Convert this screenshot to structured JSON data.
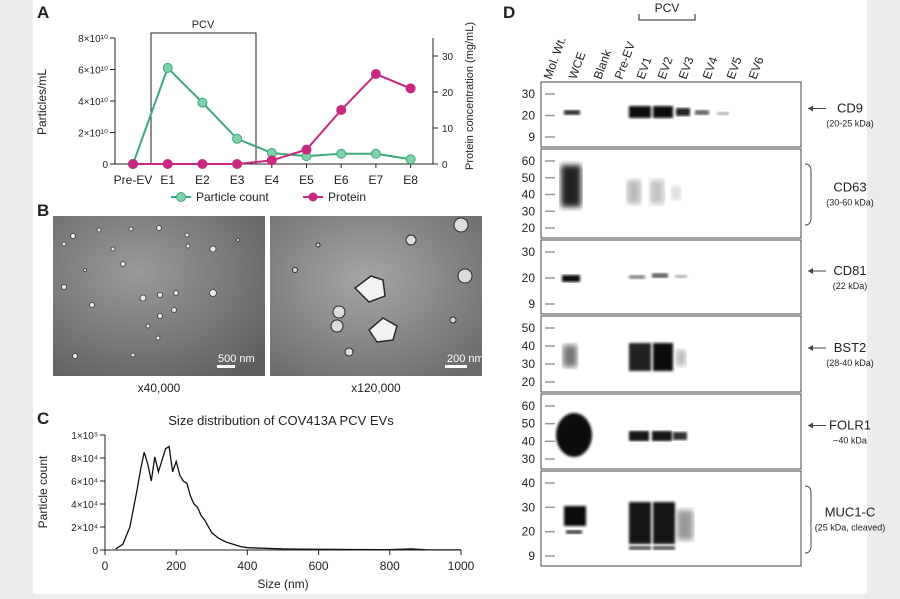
{
  "panels": {
    "a": {
      "label": "A",
      "bracket": "PCV",
      "chart_data": {
        "type": "line",
        "categories": [
          "Pre-EV",
          "E1",
          "E2",
          "E3",
          "E4",
          "E5",
          "E6",
          "E7",
          "E8"
        ],
        "ylabel": "Particles/mL",
        "y2label": "Protein concentration (mg/mL)",
        "yticks": [
          "0",
          "2×10¹⁰",
          "4×10¹⁰",
          "6×10¹⁰",
          "8×10¹⁰"
        ],
        "ylim": [
          0,
          80000000000.0
        ],
        "y2ticks": [
          "0",
          "10",
          "20",
          "30"
        ],
        "y2lim": [
          0,
          35
        ],
        "series": [
          {
            "name": "Particle count",
            "axis": "left",
            "color": "#3fa87a",
            "values": [
              0,
              61000000000.0,
              39000000000.0,
              16000000000.0,
              7000000000.0,
              5000000000.0,
              6500000000.0,
              6500000000.0,
              3000000000.0
            ]
          },
          {
            "name": "Protein",
            "axis": "right",
            "color": "#c8287f",
            "values": [
              0,
              0,
              0,
              0,
              1,
              4,
              15,
              25,
              21
            ]
          }
        ]
      }
    },
    "b": {
      "label": "B",
      "images": [
        {
          "scale": "500 nm",
          "mag": "x40,000"
        },
        {
          "scale": "200 nm",
          "mag": "x120,000"
        }
      ]
    },
    "c": {
      "label": "C",
      "chart_data": {
        "type": "line",
        "title": "Size distribution of COV413A PCV EVs",
        "xlabel": "Size (nm)",
        "ylabel": "Particle count",
        "xticks": [
          "0",
          "200",
          "400",
          "600",
          "800",
          "1000"
        ],
        "xlim": [
          0,
          1000
        ],
        "yticks": [
          "0",
          "2×10⁴",
          "4×10⁴",
          "6×10⁴",
          "8×10⁴",
          "1×10⁵"
        ],
        "ylim": [
          0,
          100000
        ],
        "x": [
          30,
          50,
          70,
          90,
          100,
          110,
          120,
          130,
          140,
          150,
          160,
          170,
          180,
          190,
          200,
          210,
          220,
          230,
          240,
          250,
          260,
          270,
          280,
          300,
          320,
          340,
          360,
          380,
          400,
          450,
          500,
          550,
          600,
          650,
          700,
          800,
          860,
          900,
          1000
        ],
        "y": [
          1000,
          5000,
          20000,
          52000,
          70000,
          85000,
          75000,
          60000,
          81000,
          68000,
          78000,
          88000,
          90000,
          68000,
          77000,
          65000,
          60000,
          58000,
          47000,
          40000,
          37000,
          30000,
          26000,
          15000,
          10000,
          7000,
          5000,
          3000,
          2000,
          1500,
          1000,
          800,
          600,
          500,
          400,
          300,
          1000,
          200,
          100
        ]
      }
    },
    "d": {
      "label": "D",
      "bracket": "PCV",
      "lanes": [
        "Mol. Wt.",
        "WCE",
        "Blank",
        "Pre-EV",
        "EV1",
        "EV2",
        "EV3",
        "EV4",
        "EV5",
        "EV6"
      ],
      "blots": [
        {
          "protein": "CD9",
          "size": "(20-25 kDa)",
          "markers": [
            "30",
            "20",
            "9"
          ]
        },
        {
          "protein": "CD63",
          "size": "(30-60 kDa)",
          "markers": [
            "60",
            "50",
            "40",
            "30",
            "20"
          ]
        },
        {
          "protein": "CD81",
          "size": "(22 kDa)",
          "markers": [
            "30",
            "20",
            "9"
          ]
        },
        {
          "protein": "BST2",
          "size": "(28-40 kDa)",
          "markers": [
            "50",
            "40",
            "30",
            "20"
          ]
        },
        {
          "protein": "FOLR1",
          "size": "~40 kDa",
          "markers": [
            "60",
            "50",
            "40",
            "30"
          ]
        },
        {
          "protein": "MUC1-C",
          "size": "(25 kDa, cleaved)",
          "markers": [
            "40",
            "30",
            "20",
            "9"
          ]
        }
      ]
    }
  }
}
